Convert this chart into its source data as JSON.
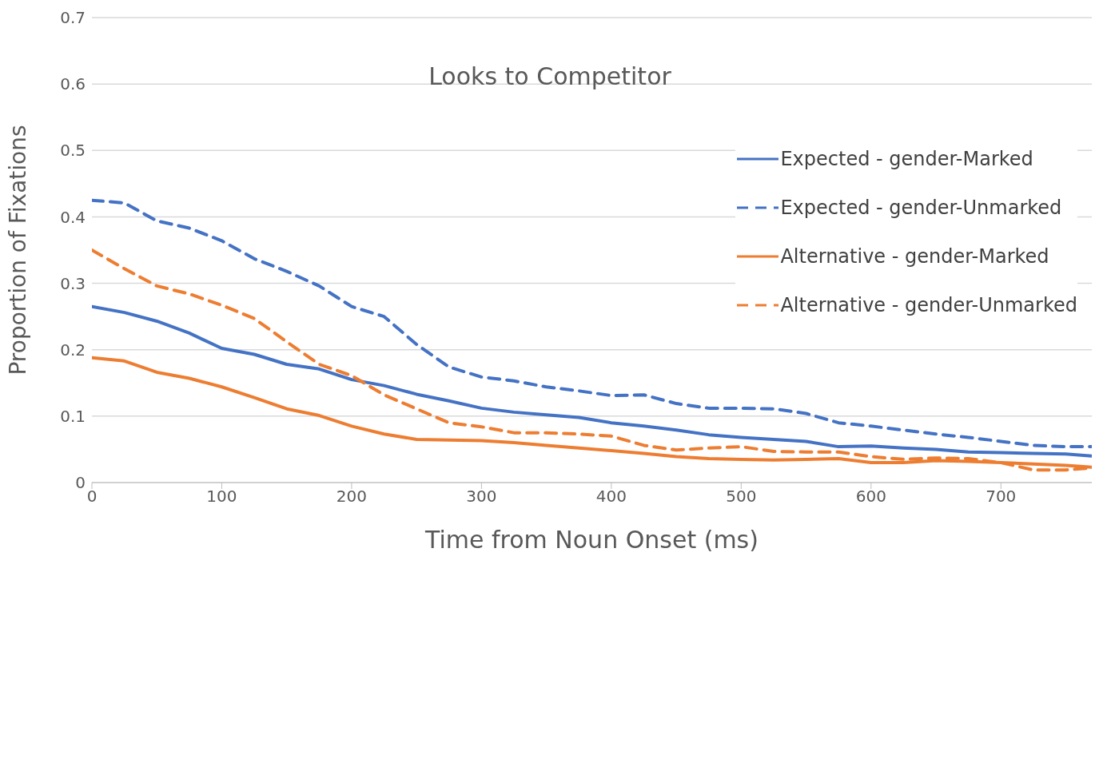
{
  "chart_data": {
    "type": "line",
    "title": "Looks to Competitor",
    "xlabel": "Time from Noun Onset (ms)",
    "ylabel": "Proportion of Fixations",
    "x": [
      0,
      25,
      50,
      75,
      100,
      125,
      150,
      175,
      200,
      225,
      250,
      275,
      300,
      325,
      350,
      375,
      400,
      425,
      450,
      475,
      500,
      525,
      550,
      575,
      600,
      625,
      650,
      675,
      700,
      725,
      750,
      770
    ],
    "series": [
      {
        "name": "Expected - gender-Marked",
        "color": "#4472c4",
        "line_style": "solid",
        "values": [
          0.265,
          0.256,
          0.243,
          0.225,
          0.202,
          0.193,
          0.178,
          0.171,
          0.155,
          0.146,
          0.133,
          0.123,
          0.112,
          0.106,
          0.102,
          0.098,
          0.09,
          0.085,
          0.079,
          0.072,
          0.068,
          0.065,
          0.062,
          0.054,
          0.055,
          0.052,
          0.05,
          0.046,
          0.045,
          0.044,
          0.043,
          0.04
        ]
      },
      {
        "name": "Expected - gender-Unmarked",
        "color": "#4472c4",
        "line_style": "dashed",
        "values": [
          0.425,
          0.421,
          0.394,
          0.383,
          0.364,
          0.337,
          0.318,
          0.296,
          0.265,
          0.25,
          0.208,
          0.174,
          0.159,
          0.153,
          0.144,
          0.138,
          0.131,
          0.132,
          0.119,
          0.112,
          0.112,
          0.111,
          0.104,
          0.09,
          0.085,
          0.079,
          0.073,
          0.068,
          0.062,
          0.056,
          0.054,
          0.054
        ]
      },
      {
        "name": "Alternative - gender-Marked",
        "color": "#ed7d31",
        "line_style": "solid",
        "values": [
          0.188,
          0.183,
          0.166,
          0.157,
          0.144,
          0.128,
          0.111,
          0.101,
          0.085,
          0.073,
          0.065,
          0.064,
          0.063,
          0.06,
          0.056,
          0.052,
          0.048,
          0.044,
          0.039,
          0.036,
          0.035,
          0.034,
          0.035,
          0.036,
          0.03,
          0.03,
          0.033,
          0.032,
          0.03,
          0.028,
          0.026,
          0.023
        ]
      },
      {
        "name": "Alternative - gender-Unmarked",
        "color": "#ed7d31",
        "line_style": "dashed",
        "values": [
          0.35,
          0.322,
          0.296,
          0.284,
          0.267,
          0.247,
          0.212,
          0.178,
          0.161,
          0.132,
          0.111,
          0.09,
          0.084,
          0.075,
          0.075,
          0.073,
          0.07,
          0.056,
          0.049,
          0.052,
          0.054,
          0.047,
          0.046,
          0.046,
          0.039,
          0.035,
          0.037,
          0.036,
          0.03,
          0.019,
          0.019,
          0.022
        ]
      }
    ],
    "xlim": [
      0,
      770
    ],
    "xticks": [
      0,
      100,
      200,
      300,
      400,
      500,
      600,
      700
    ],
    "ylim": [
      0,
      0.7
    ],
    "yticks": [
      0,
      0.1,
      0.2,
      0.3,
      0.4,
      0.5,
      0.6,
      0.7
    ],
    "grid": "y",
    "legend": "top right",
    "marker": "none"
  }
}
